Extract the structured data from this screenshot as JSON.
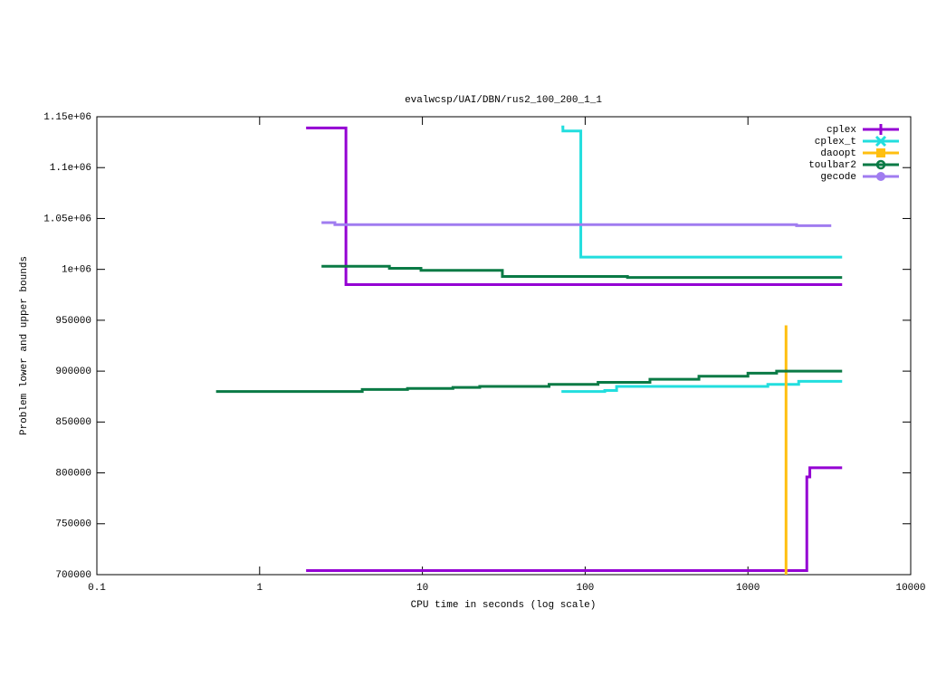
{
  "chart_data": {
    "type": "line",
    "title": "evalwcsp/UAI/DBN/rus2_100_200_1_1",
    "x_label": "CPU time in seconds (log scale)",
    "y_label": "Problem lower and upper bounds",
    "x_log": true,
    "xlim": [
      0.1,
      10000
    ],
    "xticks": [
      0.1,
      1,
      10,
      100,
      1000,
      10000
    ],
    "ylim": [
      700000,
      1150000
    ],
    "yticks": [
      700000,
      750000,
      800000,
      850000,
      900000,
      950000,
      {
        "value": 1000000,
        "label": "1e+06"
      },
      {
        "value": 1050000,
        "label": "1.05e+06"
      },
      {
        "value": 1100000,
        "label": "1.1e+06"
      },
      {
        "value": 1150000,
        "label": "1.15e+06"
      }
    ],
    "legend": "top-right",
    "series": [
      {
        "name": "cplex",
        "color": "#9400d3",
        "x": [
          1.93,
          3.39,
          3.39,
          3790,
          null,
          1.93,
          2300,
          2300,
          2400,
          2400,
          3790
        ],
        "values": [
          1139000,
          1139000,
          985000,
          985000,
          null,
          704000,
          704000,
          796000,
          796000,
          805000,
          805000
        ]
      },
      {
        "name": "cplex_t",
        "color": "#22dede",
        "x": [
          71.5,
          73,
          73,
          94,
          94,
          3790,
          null,
          71.5,
          132,
          132,
          156,
          156,
          1325,
          1325,
          2050,
          2050,
          3790
        ],
        "values": [
          1140000,
          1140000,
          1136000,
          1136000,
          1012000,
          1012000,
          null,
          880000,
          880000,
          881000,
          881000,
          885000,
          885000,
          887000,
          887000,
          890000,
          890000
        ]
      },
      {
        "name": "daoopt",
        "color": "#ffbf10",
        "x": [
          1714,
          1714
        ],
        "values": [
          945000,
          700000
        ]
      },
      {
        "name": "toulbar2",
        "color": "#0a7a45",
        "x": [
          2.4,
          6.27,
          6.27,
          9.8,
          9.8,
          31,
          31,
          182,
          182,
          3790,
          null,
          0.54,
          4.27,
          4.27,
          8.1,
          8.1,
          15.4,
          15.4,
          22.5,
          22.5,
          60,
          60,
          120,
          120,
          250,
          250,
          500,
          500,
          1000,
          1000,
          1500,
          1500,
          3790
        ],
        "values": [
          1003000,
          1003000,
          1001000,
          1001000,
          999000,
          999000,
          993000,
          993000,
          992000,
          992000,
          null,
          880000,
          880000,
          882000,
          882000,
          883000,
          883000,
          884000,
          884000,
          885000,
          885000,
          887000,
          887000,
          889000,
          889000,
          892000,
          892000,
          895000,
          895000,
          898000,
          898000,
          900000,
          900000
        ]
      },
      {
        "name": "gecode",
        "color": "#a07cf0",
        "x": [
          2.4,
          2.9,
          2.9,
          1990,
          1990,
          3250
        ],
        "values": [
          1046000,
          1046000,
          1044000,
          1044000,
          1043000,
          1043000
        ]
      }
    ]
  }
}
